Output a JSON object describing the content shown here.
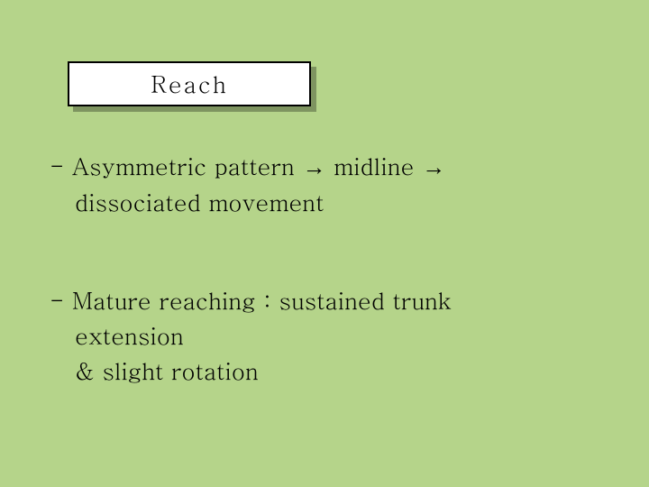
{
  "title": "Reach",
  "block1": {
    "line1_prefix": "- Asymmetric pattern ",
    "line1_mid": " midline ",
    "line2": "dissociated movement"
  },
  "block2": {
    "line1": "- Mature reaching : sustained trunk",
    "line2": "extension",
    "line3": "& slight rotation"
  },
  "arrow": "→",
  "colors": {
    "background": "#b5d48a",
    "box_fill": "#ffffff",
    "box_border": "#000000",
    "text": "#000000"
  }
}
